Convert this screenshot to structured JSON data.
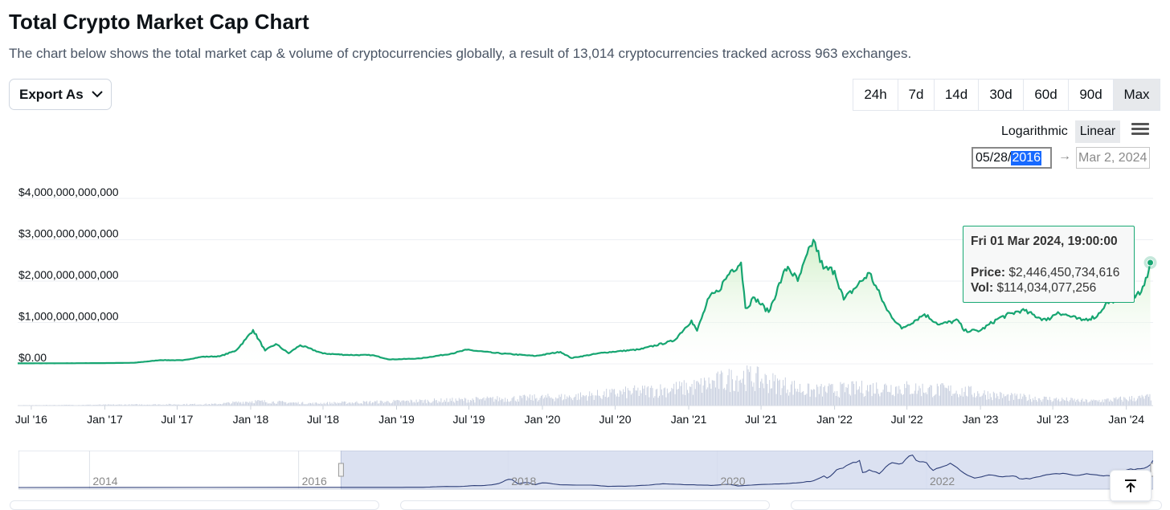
{
  "header": {
    "title": "Total Crypto Market Cap Chart",
    "subtitle": "The chart below shows the total market cap & volume of cryptocurrencies globally, a result of 13,014 cryptocurrencies tracked across 963 exchanges."
  },
  "toolbar": {
    "export_label": "Export As",
    "ranges": [
      "24h",
      "7d",
      "14d",
      "30d",
      "60d",
      "90d",
      "Max"
    ],
    "active_range": "Max",
    "scale_log": "Logarithmic",
    "scale_linear": "Linear",
    "active_scale": "Linear",
    "date_from_prefix": "05/28/",
    "date_from_year": "2016",
    "date_arrow": "→",
    "date_to": "Mar 2, 2024"
  },
  "tooltip": {
    "date": "Fri 01 Mar 2024, 19:00:00",
    "price_label": "Price:",
    "price_value": "$2,446,450,734,616",
    "vol_label": "Vol:",
    "vol_value": "$114,034,077,256"
  },
  "colors": {
    "line": "#16a571",
    "area_top": "#cdeec4",
    "volume": "#c9d0df",
    "tooltip_border": "#19a974",
    "navigator_fill": "#d5dcee",
    "navigator_line": "#2d3e78"
  },
  "chart_data": {
    "type": "line",
    "title": "Total Crypto Market Cap Chart",
    "ylim": [
      0,
      4000000000000
    ],
    "y_ticks": [
      {
        "value": 0,
        "label": "$0.00"
      },
      {
        "value": 1000000000000,
        "label": "$1,000,000,000,000"
      },
      {
        "value": 2000000000000,
        "label": "$2,000,000,000,000"
      },
      {
        "value": 3000000000000,
        "label": "$3,000,000,000,000"
      },
      {
        "value": 4000000000000,
        "label": "$4,000,000,000,000"
      }
    ],
    "xlim": [
      "2016-05-28",
      "2024-03-02"
    ],
    "x_ticks": [
      {
        "date": "2016-07-01",
        "label": "Jul '16"
      },
      {
        "date": "2017-01-01",
        "label": "Jan '17"
      },
      {
        "date": "2017-07-01",
        "label": "Jul '17"
      },
      {
        "date": "2018-01-01",
        "label": "Jan '18"
      },
      {
        "date": "2018-07-01",
        "label": "Jul '18"
      },
      {
        "date": "2019-01-01",
        "label": "Jan '19"
      },
      {
        "date": "2019-07-01",
        "label": "Jul '19"
      },
      {
        "date": "2020-01-01",
        "label": "Jan '20"
      },
      {
        "date": "2020-07-01",
        "label": "Jul '20"
      },
      {
        "date": "2021-01-01",
        "label": "Jan '21"
      },
      {
        "date": "2021-07-01",
        "label": "Jul '21"
      },
      {
        "date": "2022-01-01",
        "label": "Jan '22"
      },
      {
        "date": "2022-07-01",
        "label": "Jul '22"
      },
      {
        "date": "2023-01-01",
        "label": "Jan '23"
      },
      {
        "date": "2023-07-01",
        "label": "Jul '23"
      },
      {
        "date": "2024-01-01",
        "label": "Jan '24"
      }
    ],
    "series": [
      {
        "points": [
          [
            "2016-05-28",
            12000000000
          ],
          [
            "2016-09-01",
            13000000000
          ],
          [
            "2017-01-01",
            18000000000
          ],
          [
            "2017-03-15",
            25000000000
          ],
          [
            "2017-05-20",
            90000000000
          ],
          [
            "2017-07-15",
            85000000000
          ],
          [
            "2017-09-01",
            170000000000
          ],
          [
            "2017-10-15",
            180000000000
          ],
          [
            "2017-11-25",
            320000000000
          ],
          [
            "2017-12-20",
            600000000000
          ],
          [
            "2018-01-07",
            820000000000
          ],
          [
            "2018-02-06",
            320000000000
          ],
          [
            "2018-03-05",
            480000000000
          ],
          [
            "2018-04-06",
            255000000000
          ],
          [
            "2018-05-05",
            450000000000
          ],
          [
            "2018-07-01",
            250000000000
          ],
          [
            "2018-09-01",
            215000000000
          ],
          [
            "2018-11-01",
            210000000000
          ],
          [
            "2018-12-15",
            105000000000
          ],
          [
            "2019-03-01",
            130000000000
          ],
          [
            "2019-05-20",
            250000000000
          ],
          [
            "2019-06-26",
            340000000000
          ],
          [
            "2019-09-01",
            265000000000
          ],
          [
            "2019-12-15",
            190000000000
          ],
          [
            "2020-02-15",
            290000000000
          ],
          [
            "2020-03-13",
            140000000000
          ],
          [
            "2020-06-01",
            270000000000
          ],
          [
            "2020-09-01",
            350000000000
          ],
          [
            "2020-11-25",
            560000000000
          ],
          [
            "2021-01-08",
            1050000000000
          ],
          [
            "2021-01-22",
            800000000000
          ],
          [
            "2021-02-21",
            1600000000000
          ],
          [
            "2021-03-15",
            1750000000000
          ],
          [
            "2021-04-16",
            2250000000000
          ],
          [
            "2021-05-12",
            2450000000000
          ],
          [
            "2021-05-23",
            1350000000000
          ],
          [
            "2021-06-15",
            1600000000000
          ],
          [
            "2021-07-20",
            1250000000000
          ],
          [
            "2021-08-23",
            2100000000000
          ],
          [
            "2021-09-06",
            2350000000000
          ],
          [
            "2021-10-01",
            2000000000000
          ],
          [
            "2021-11-09",
            3000000000000
          ],
          [
            "2021-12-04",
            2300000000000
          ],
          [
            "2022-01-01",
            2250000000000
          ],
          [
            "2022-01-24",
            1550000000000
          ],
          [
            "2022-03-29",
            2200000000000
          ],
          [
            "2022-05-12",
            1300000000000
          ],
          [
            "2022-06-18",
            850000000000
          ],
          [
            "2022-08-14",
            1200000000000
          ],
          [
            "2022-09-20",
            950000000000
          ],
          [
            "2022-11-06",
            1050000000000
          ],
          [
            "2022-11-21",
            800000000000
          ],
          [
            "2022-12-31",
            800000000000
          ],
          [
            "2023-02-15",
            1100000000000
          ],
          [
            "2023-04-14",
            1300000000000
          ],
          [
            "2023-06-15",
            1050000000000
          ],
          [
            "2023-07-14",
            1250000000000
          ],
          [
            "2023-09-11",
            1050000000000
          ],
          [
            "2023-10-20",
            1150000000000
          ],
          [
            "2023-11-10",
            1450000000000
          ],
          [
            "2024-01-11",
            1750000000000
          ],
          [
            "2024-01-23",
            1600000000000
          ],
          [
            "2024-02-15",
            1900000000000
          ],
          [
            "2024-03-01",
            2446450734616
          ]
        ]
      }
    ],
    "volume": [
      [
        "2016-05-28",
        5000000000
      ],
      [
        "2017-10-01",
        20000000000
      ],
      [
        "2018-01-05",
        60000000000
      ],
      [
        "2018-06-01",
        30000000000
      ],
      [
        "2019-05-01",
        70000000000
      ],
      [
        "2020-03-12",
        120000000000
      ],
      [
        "2021-01-10",
        250000000000
      ],
      [
        "2021-05-19",
        400000000000
      ],
      [
        "2021-11-01",
        200000000000
      ],
      [
        "2022-05-10",
        250000000000
      ],
      [
        "2022-11-10",
        200000000000
      ],
      [
        "2023-03-15",
        120000000000
      ],
      [
        "2023-10-01",
        60000000000
      ],
      [
        "2024-03-01",
        114034077256
      ]
    ],
    "volume_max": 500000000000,
    "grid": true,
    "navigator": {
      "years": [
        "2014",
        "2016",
        "2018",
        "2020",
        "2022"
      ],
      "range_start": "2016-05-28",
      "range_end": "2024-03-02"
    }
  }
}
